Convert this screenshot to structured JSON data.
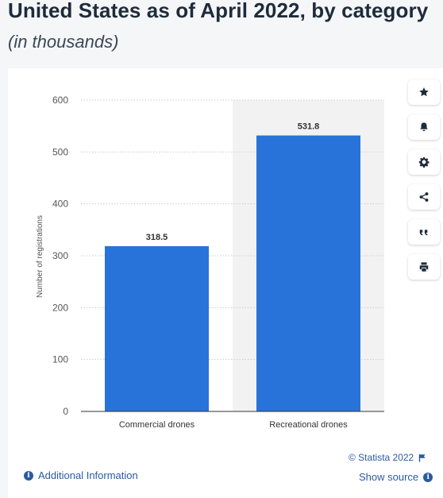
{
  "header": {
    "title": "United States as of April 2022, by category",
    "subtitle": "(in thousands)"
  },
  "toolbar": {
    "items": [
      {
        "name": "star-icon"
      },
      {
        "name": "bell-icon"
      },
      {
        "name": "gear-icon"
      },
      {
        "name": "share-icon"
      },
      {
        "name": "quote-icon"
      },
      {
        "name": "print-icon"
      }
    ]
  },
  "footer": {
    "credit": "© Statista 2022",
    "additional_info": "Additional Information",
    "show_source": "Show source"
  },
  "colors": {
    "bar": "#2873d9",
    "highlight_band": "#f2f2f2",
    "grid": "#cccccc"
  },
  "chart_data": {
    "type": "bar",
    "categories": [
      "Commercial drones",
      "Recreational drones"
    ],
    "values": [
      318.5,
      531.8
    ],
    "value_labels": [
      "318.5",
      "531.8"
    ],
    "ylabel": "Number of registrations",
    "xlabel": "",
    "ylim": [
      0,
      600
    ],
    "yticks": [
      0,
      100,
      200,
      300,
      400,
      500,
      600
    ],
    "grid": true,
    "highlighted_category_index": 1
  }
}
